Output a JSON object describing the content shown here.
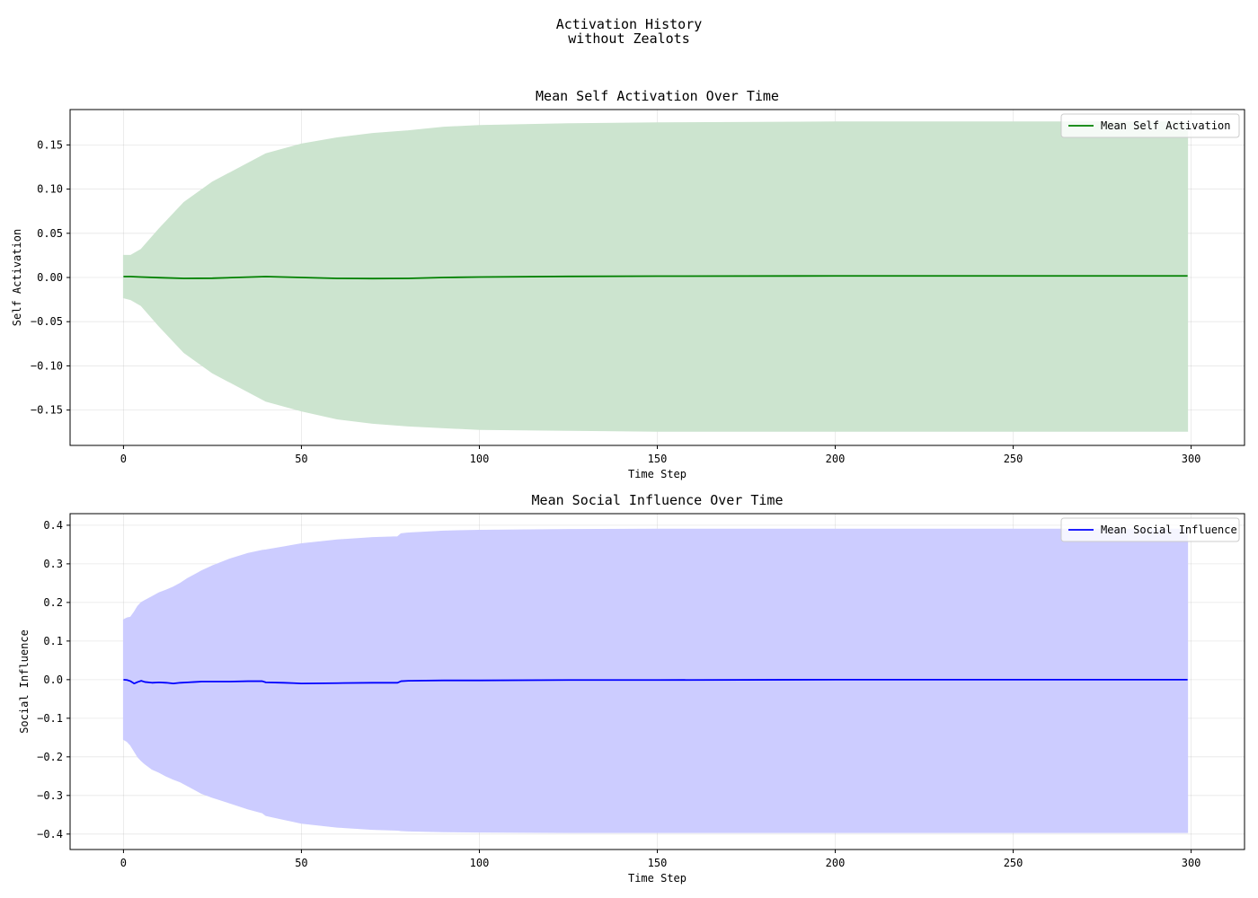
{
  "figure": {
    "suptitle_line1": "Activation History",
    "suptitle_line2": "without Zealots"
  },
  "chart_data": [
    {
      "type": "line",
      "title": "Mean Self Activation Over Time",
      "xlabel": "Time Step",
      "ylabel": "Self Activation",
      "xlim": [
        -15,
        315
      ],
      "ylim": [
        -0.19,
        0.19
      ],
      "xticks": [
        0,
        50,
        100,
        150,
        200,
        250,
        300
      ],
      "xtick_labels": [
        "0",
        "50",
        "100",
        "150",
        "200",
        "250",
        "300"
      ],
      "yticks": [
        -0.15,
        -0.1,
        -0.05,
        0.0,
        0.05,
        0.1,
        0.15
      ],
      "ytick_labels": [
        "−0.15",
        "−0.10",
        "−0.05",
        "0.00",
        "0.05",
        "0.10",
        "0.15"
      ],
      "grid": true,
      "legend_position": "top-right",
      "series": [
        {
          "name": "Mean Self Activation",
          "color": "#008000",
          "band_color": "#cce4cf",
          "x": [
            0,
            2,
            5,
            10,
            17,
            25,
            40,
            50,
            60,
            70,
            80,
            90,
            100,
            125,
            150,
            200,
            250,
            299
          ],
          "mean": [
            0.001,
            0.001,
            0.0005,
            -0.0002,
            -0.001,
            -0.0008,
            0.001,
            0.0,
            -0.001,
            -0.0012,
            -0.001,
            0.0,
            0.0005,
            0.0012,
            0.0015,
            0.0018,
            0.0018,
            0.0018
          ],
          "upper": [
            0.025,
            0.025,
            0.032,
            0.055,
            0.085,
            0.108,
            0.14,
            0.151,
            0.158,
            0.163,
            0.166,
            0.17,
            0.172,
            0.174,
            0.175,
            0.176,
            0.176,
            0.176
          ],
          "lower": [
            -0.023,
            -0.025,
            -0.032,
            -0.055,
            -0.085,
            -0.108,
            -0.14,
            -0.151,
            -0.16,
            -0.165,
            -0.168,
            -0.17,
            -0.172,
            -0.173,
            -0.174,
            -0.174,
            -0.174,
            -0.174
          ]
        }
      ]
    },
    {
      "type": "line",
      "title": "Mean Social Influence Over Time",
      "xlabel": "Time Step",
      "ylabel": "Social Influence",
      "xlim": [
        -15,
        315
      ],
      "ylim": [
        -0.44,
        0.43
      ],
      "xticks": [
        0,
        50,
        100,
        150,
        200,
        250,
        300
      ],
      "xtick_labels": [
        "0",
        "50",
        "100",
        "150",
        "200",
        "250",
        "300"
      ],
      "yticks": [
        -0.4,
        -0.3,
        -0.2,
        -0.1,
        0.0,
        0.1,
        0.2,
        0.3,
        0.4
      ],
      "ytick_labels": [
        "−0.4",
        "−0.3",
        "−0.2",
        "−0.1",
        "0.0",
        "0.1",
        "0.2",
        "0.3",
        "0.4"
      ],
      "grid": true,
      "legend_position": "top-right",
      "series": [
        {
          "name": "Mean Social Influence",
          "color": "#0000ff",
          "band_color": "#ccccff",
          "x": [
            0,
            1,
            2,
            3,
            4,
            5,
            6,
            8,
            10,
            12,
            14,
            16,
            18,
            20,
            22,
            25,
            30,
            35,
            39,
            40,
            45,
            48,
            50,
            60,
            70,
            77,
            78,
            80,
            90,
            100,
            125,
            150,
            200,
            250,
            299
          ],
          "mean": [
            0.0,
            -0.001,
            -0.004,
            -0.01,
            -0.006,
            -0.003,
            -0.006,
            -0.008,
            -0.007,
            -0.008,
            -0.01,
            -0.008,
            -0.007,
            -0.006,
            -0.005,
            -0.005,
            -0.005,
            -0.004,
            -0.004,
            -0.007,
            -0.008,
            -0.009,
            -0.01,
            -0.009,
            -0.008,
            -0.008,
            -0.004,
            -0.003,
            -0.002,
            -0.002,
            -0.001,
            -0.001,
            0.0,
            0.0,
            0.0
          ],
          "upper": [
            0.155,
            0.16,
            0.162,
            0.175,
            0.19,
            0.2,
            0.205,
            0.215,
            0.225,
            0.232,
            0.24,
            0.25,
            0.262,
            0.272,
            0.282,
            0.295,
            0.313,
            0.327,
            0.335,
            0.336,
            0.344,
            0.349,
            0.352,
            0.362,
            0.368,
            0.37,
            0.378,
            0.38,
            0.385,
            0.387,
            0.389,
            0.39,
            0.39,
            0.39,
            0.39
          ],
          "lower": [
            -0.155,
            -0.16,
            -0.17,
            -0.185,
            -0.2,
            -0.21,
            -0.218,
            -0.232,
            -0.24,
            -0.25,
            -0.258,
            -0.265,
            -0.275,
            -0.285,
            -0.295,
            -0.305,
            -0.32,
            -0.335,
            -0.345,
            -0.352,
            -0.362,
            -0.368,
            -0.372,
            -0.382,
            -0.388,
            -0.39,
            -0.391,
            -0.392,
            -0.394,
            -0.395,
            -0.396,
            -0.396,
            -0.396,
            -0.396,
            -0.396
          ]
        }
      ]
    }
  ]
}
